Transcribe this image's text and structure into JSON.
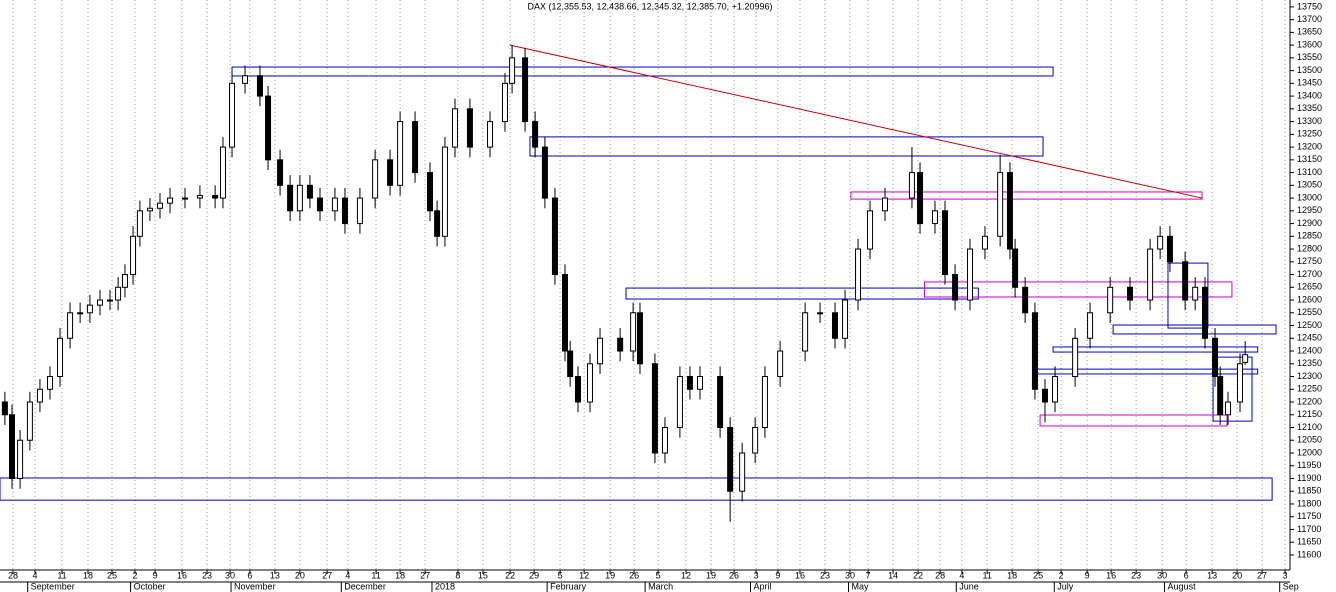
{
  "chart_data": {
    "type": "candlestick",
    "title": "DAX (12,355.53, 12,438.66, 12,345.32, 12,385.70, +1.20996)",
    "xlim": [
      -0.53,
      52.12
    ],
    "ylim": [
      11541,
      13777
    ],
    "xticks": [
      {
        "value": 0.0,
        "label": "28"
      },
      {
        "value": 0.9,
        "label": "4"
      },
      {
        "value": 2.0,
        "label": "11"
      },
      {
        "value": 3.06,
        "label": "18"
      },
      {
        "value": 4.04,
        "label": "25"
      },
      {
        "value": 4.98,
        "label": "2"
      },
      {
        "value": 5.8,
        "label": "9"
      },
      {
        "value": 6.9,
        "label": "16"
      },
      {
        "value": 7.92,
        "label": "23"
      },
      {
        "value": 8.86,
        "label": "30"
      },
      {
        "value": 9.67,
        "label": "6"
      },
      {
        "value": 10.69,
        "label": "13"
      },
      {
        "value": 11.71,
        "label": "20"
      },
      {
        "value": 12.82,
        "label": "27"
      },
      {
        "value": 13.67,
        "label": "4"
      },
      {
        "value": 14.82,
        "label": "11"
      },
      {
        "value": 15.8,
        "label": "18"
      },
      {
        "value": 16.82,
        "label": "27"
      },
      {
        "value": 18.16,
        "label": "8"
      },
      {
        "value": 19.18,
        "label": "15"
      },
      {
        "value": 20.29,
        "label": "22"
      },
      {
        "value": 21.27,
        "label": "29"
      },
      {
        "value": 22.33,
        "label": "5"
      },
      {
        "value": 23.31,
        "label": "12"
      },
      {
        "value": 24.37,
        "label": "19"
      },
      {
        "value": 25.35,
        "label": "26"
      },
      {
        "value": 26.33,
        "label": "5"
      },
      {
        "value": 27.47,
        "label": "12"
      },
      {
        "value": 28.49,
        "label": "19"
      },
      {
        "value": 29.43,
        "label": "26"
      },
      {
        "value": 30.33,
        "label": "3"
      },
      {
        "value": 31.22,
        "label": "9"
      },
      {
        "value": 32.12,
        "label": "16"
      },
      {
        "value": 33.14,
        "label": "23"
      },
      {
        "value": 34.16,
        "label": "30"
      },
      {
        "value": 34.9,
        "label": "7"
      },
      {
        "value": 35.92,
        "label": "14"
      },
      {
        "value": 36.94,
        "label": "22"
      },
      {
        "value": 37.84,
        "label": "28"
      },
      {
        "value": 38.73,
        "label": "4"
      },
      {
        "value": 39.76,
        "label": "11"
      },
      {
        "value": 40.78,
        "label": "18"
      },
      {
        "value": 41.84,
        "label": "25"
      },
      {
        "value": 42.78,
        "label": "2"
      },
      {
        "value": 43.84,
        "label": "9"
      },
      {
        "value": 44.82,
        "label": "16"
      },
      {
        "value": 45.84,
        "label": "23"
      },
      {
        "value": 46.9,
        "label": "30"
      },
      {
        "value": 47.88,
        "label": "6"
      },
      {
        "value": 48.94,
        "label": "13"
      },
      {
        "value": 49.96,
        "label": "20"
      },
      {
        "value": 50.98,
        "label": "27"
      },
      {
        "value": 51.92,
        "label": "3"
      }
    ],
    "month_ticks": [
      {
        "value": 0.6,
        "label": "September"
      },
      {
        "value": 4.8,
        "label": "October"
      },
      {
        "value": 8.9,
        "label": "November"
      },
      {
        "value": 13.4,
        "label": "December"
      },
      {
        "value": 17.1,
        "label": "2018"
      },
      {
        "value": 21.8,
        "label": "February"
      },
      {
        "value": 25.8,
        "label": "March"
      },
      {
        "value": 30.1,
        "label": "April"
      },
      {
        "value": 34.1,
        "label": "May"
      },
      {
        "value": 38.5,
        "label": "June"
      },
      {
        "value": 42.5,
        "label": "July"
      },
      {
        "value": 47,
        "label": "August"
      },
      {
        "value": 51.7,
        "label": "Sep"
      }
    ],
    "yticks": [
      11600,
      11650,
      11700,
      11750,
      11800,
      11850,
      11900,
      11950,
      12000,
      12050,
      12100,
      12150,
      12200,
      12250,
      12300,
      12350,
      12400,
      12450,
      12500,
      12550,
      12600,
      12650,
      12700,
      12750,
      12800,
      12850,
      12900,
      12950,
      13000,
      13050,
      13100,
      13150,
      13200,
      13250,
      13300,
      13350,
      13400,
      13450,
      13500,
      13550,
      13600,
      13650,
      13700,
      13750
    ],
    "up_color": "#ffffff",
    "down_color": "#000000",
    "x": [
      -0.33,
      -0.04,
      0.29,
      0.69,
      1.1,
      1.51,
      1.92,
      2.33,
      2.74,
      3.14,
      3.55,
      3.96,
      4.29,
      4.57,
      4.9,
      5.18,
      5.59,
      6.0,
      6.41,
      7.02,
      7.63,
      8.25,
      8.57,
      8.94,
      9.47,
      10.08,
      10.41,
      10.9,
      11.31,
      11.71,
      12.12,
      12.53,
      13.14,
      13.55,
      14.16,
      14.78,
      15.39,
      15.8,
      16.41,
      17.02,
      17.31,
      17.63,
      18.04,
      18.65,
      19.47,
      20.08,
      20.37,
      20.9,
      21.31,
      21.71,
      22.12,
      22.53,
      22.74,
      23.06,
      23.55,
      23.96,
      24.78,
      25.31,
      25.59,
      26.2,
      26.61,
      27.22,
      27.63,
      28.04,
      28.86,
      29.27,
      29.76,
      30.29,
      30.69,
      31.31,
      32.33,
      32.94,
      33.55,
      33.96,
      34.49,
      34.98,
      35.59,
      36.69,
      37.02,
      37.63,
      38.04,
      38.45,
      39.06,
      39.67,
      40.29,
      40.69,
      40.9,
      41.31,
      41.71,
      42.12,
      42.53,
      43.35,
      43.96,
      44.78,
      45.59,
      46.41,
      46.82,
      47.22,
      47.84,
      48.25,
      48.65,
      49.06,
      49.27,
      49.59,
      50.08,
      50.29
    ],
    "open": [
      12200,
      12150,
      11900,
      12050,
      12200,
      12250,
      12300,
      12450,
      12550,
      12550,
      12580,
      12600,
      12600,
      12650,
      12700,
      12850,
      12950,
      12960,
      12980,
      13000,
      13000,
      13010,
      13000,
      13200,
      13450,
      13480,
      13400,
      13150,
      13050,
      12950,
      13050,
      13000,
      12950,
      13000,
      12900,
      13000,
      13150,
      13050,
      13300,
      13100,
      12950,
      12850,
      13200,
      13350,
      13200,
      13300,
      13450,
      13550,
      13300,
      13200,
      13000,
      12700,
      12400,
      12300,
      12200,
      12350,
      12450,
      12400,
      12550,
      12350,
      12000,
      12100,
      12300,
      12250,
      12300,
      12100,
      11850,
      12000,
      12100,
      12300,
      12400,
      12550,
      12550,
      12450,
      12600,
      12800,
      12950,
      13000,
      13100,
      12900,
      12950,
      12700,
      12600,
      12800,
      12850,
      13100,
      12800,
      12650,
      12550,
      12250,
      12200,
      12300,
      12450,
      12550,
      12650,
      12600,
      12800,
      12850,
      12750,
      12600,
      12650,
      12450,
      12300,
      12150,
      12200,
      12355.53
    ],
    "high": [
      12240,
      12190,
      12090,
      12240,
      12290,
      12340,
      12490,
      12590,
      12590,
      12620,
      12640,
      12640,
      12690,
      12740,
      12890,
      12990,
      13000,
      13020,
      13040,
      13040,
      13050,
      13050,
      13240,
      13490,
      13520,
      13520,
      13440,
      13190,
      13090,
      13090,
      13090,
      13040,
      13040,
      13040,
      13040,
      13190,
      13190,
      13340,
      13340,
      13140,
      12990,
      13240,
      13390,
      13390,
      13340,
      13490,
      13600,
      13590,
      13340,
      13240,
      13040,
      12740,
      12440,
      12340,
      12390,
      12490,
      12490,
      12590,
      12590,
      12390,
      12140,
      12340,
      12340,
      12340,
      12340,
      12140,
      12040,
      12140,
      12340,
      12440,
      12590,
      12590,
      12590,
      12640,
      12840,
      12990,
      13040,
      13200,
      13140,
      12990,
      12990,
      12740,
      12840,
      12890,
      13170,
      13140,
      12840,
      12690,
      12590,
      12290,
      12340,
      12490,
      12590,
      12690,
      12690,
      12840,
      12890,
      12890,
      12790,
      12690,
      12690,
      12490,
      12340,
      12240,
      12390,
      12438.66
    ],
    "low": [
      12110,
      11860,
      11860,
      12010,
      12160,
      12210,
      12260,
      12410,
      12510,
      12510,
      12540,
      12560,
      12560,
      12610,
      12660,
      12810,
      12910,
      12920,
      12940,
      12960,
      12960,
      12960,
      12960,
      13160,
      13410,
      13360,
      13110,
      13010,
      12910,
      12910,
      12960,
      12910,
      12910,
      12860,
      12860,
      12960,
      13010,
      13010,
      13060,
      12910,
      12810,
      12810,
      13160,
      13160,
      13160,
      13260,
      13410,
      13260,
      13160,
      12960,
      12660,
      12360,
      12260,
      12160,
      12160,
      12310,
      12360,
      12360,
      12310,
      11960,
      11960,
      12060,
      12210,
      12210,
      12060,
      11730,
      11810,
      11960,
      12060,
      12260,
      12360,
      12510,
      12410,
      12410,
      12560,
      12760,
      12910,
      12960,
      12860,
      12860,
      12660,
      12560,
      12560,
      12760,
      12810,
      12760,
      12610,
      12510,
      12210,
      12120,
      12160,
      12260,
      12410,
      12510,
      12560,
      12560,
      12760,
      12710,
      12560,
      12560,
      12410,
      12260,
      12110,
      12110,
      12160,
      12345.32
    ],
    "close": [
      12150,
      11900,
      12050,
      12200,
      12250,
      12300,
      12450,
      12550,
      12550,
      12580,
      12600,
      12600,
      12650,
      12700,
      12850,
      12950,
      12960,
      12980,
      13000,
      13000,
      13010,
      13000,
      13200,
      13450,
      13480,
      13400,
      13150,
      13050,
      12950,
      13050,
      13000,
      12950,
      13000,
      12900,
      13000,
      13150,
      13050,
      13300,
      13100,
      12950,
      12850,
      13200,
      13350,
      13200,
      13300,
      13450,
      13550,
      13300,
      13200,
      13000,
      12700,
      12400,
      12300,
      12200,
      12350,
      12450,
      12400,
      12550,
      12350,
      12000,
      12100,
      12300,
      12250,
      12300,
      12100,
      11850,
      12000,
      12100,
      12300,
      12400,
      12550,
      12550,
      12450,
      12600,
      12800,
      12950,
      13000,
      13100,
      12900,
      12950,
      12700,
      12600,
      12800,
      12850,
      13100,
      12800,
      12650,
      12550,
      12250,
      12200,
      12300,
      12450,
      12550,
      12650,
      12600,
      12800,
      12850,
      12750,
      12600,
      12650,
      12450,
      12300,
      12150,
      12200,
      12350,
      12385.7
    ],
    "rectangles": [
      {
        "x": [
          8.94,
          42.45
        ],
        "y": [
          13479,
          13514
        ],
        "color": "#0000cc"
      },
      {
        "x": [
          21.1,
          42.04
        ],
        "y": [
          13165,
          13240
        ],
        "color": "#0000cc"
      },
      {
        "x": [
          34.2,
          48.53
        ],
        "y": [
          12996,
          13024
        ],
        "color": "#cc00cc"
      },
      {
        "x": [
          25.02,
          39.4
        ],
        "y": [
          12604,
          12647
        ],
        "color": "#0000cc"
      },
      {
        "x": [
          37.2,
          49.75
        ],
        "y": [
          12612,
          12671
        ],
        "color": "#cc00cc"
      },
      {
        "x": [
          44.9,
          51.55
        ],
        "y": [
          12467,
          12502
        ],
        "color": "#0000cc"
      },
      {
        "x": [
          47.14,
          48.77
        ],
        "y": [
          12490,
          12745
        ],
        "color": "#0000cc"
      },
      {
        "x": [
          42.45,
          50.8
        ],
        "y": [
          12396,
          12416
        ],
        "color": "#0000cc"
      },
      {
        "x": [
          41.8,
          50.8
        ],
        "y": [
          12310,
          12329
        ],
        "color": "#0000cc"
      },
      {
        "x": [
          48.98,
          50.57
        ],
        "y": [
          12125,
          12376
        ],
        "color": "#0000cc"
      },
      {
        "x": [
          41.92,
          49.55
        ],
        "y": [
          12106,
          12149
        ],
        "color": "#cc00cc"
      },
      {
        "x": [
          -0.53,
          51.39
        ],
        "y": [
          11815,
          11902
        ],
        "color": "#0000cc"
      }
    ],
    "trendlines": [
      {
        "x": [
          20.29,
          48.53
        ],
        "y": [
          13600,
          13000
        ],
        "color": "#cc0000"
      }
    ]
  }
}
